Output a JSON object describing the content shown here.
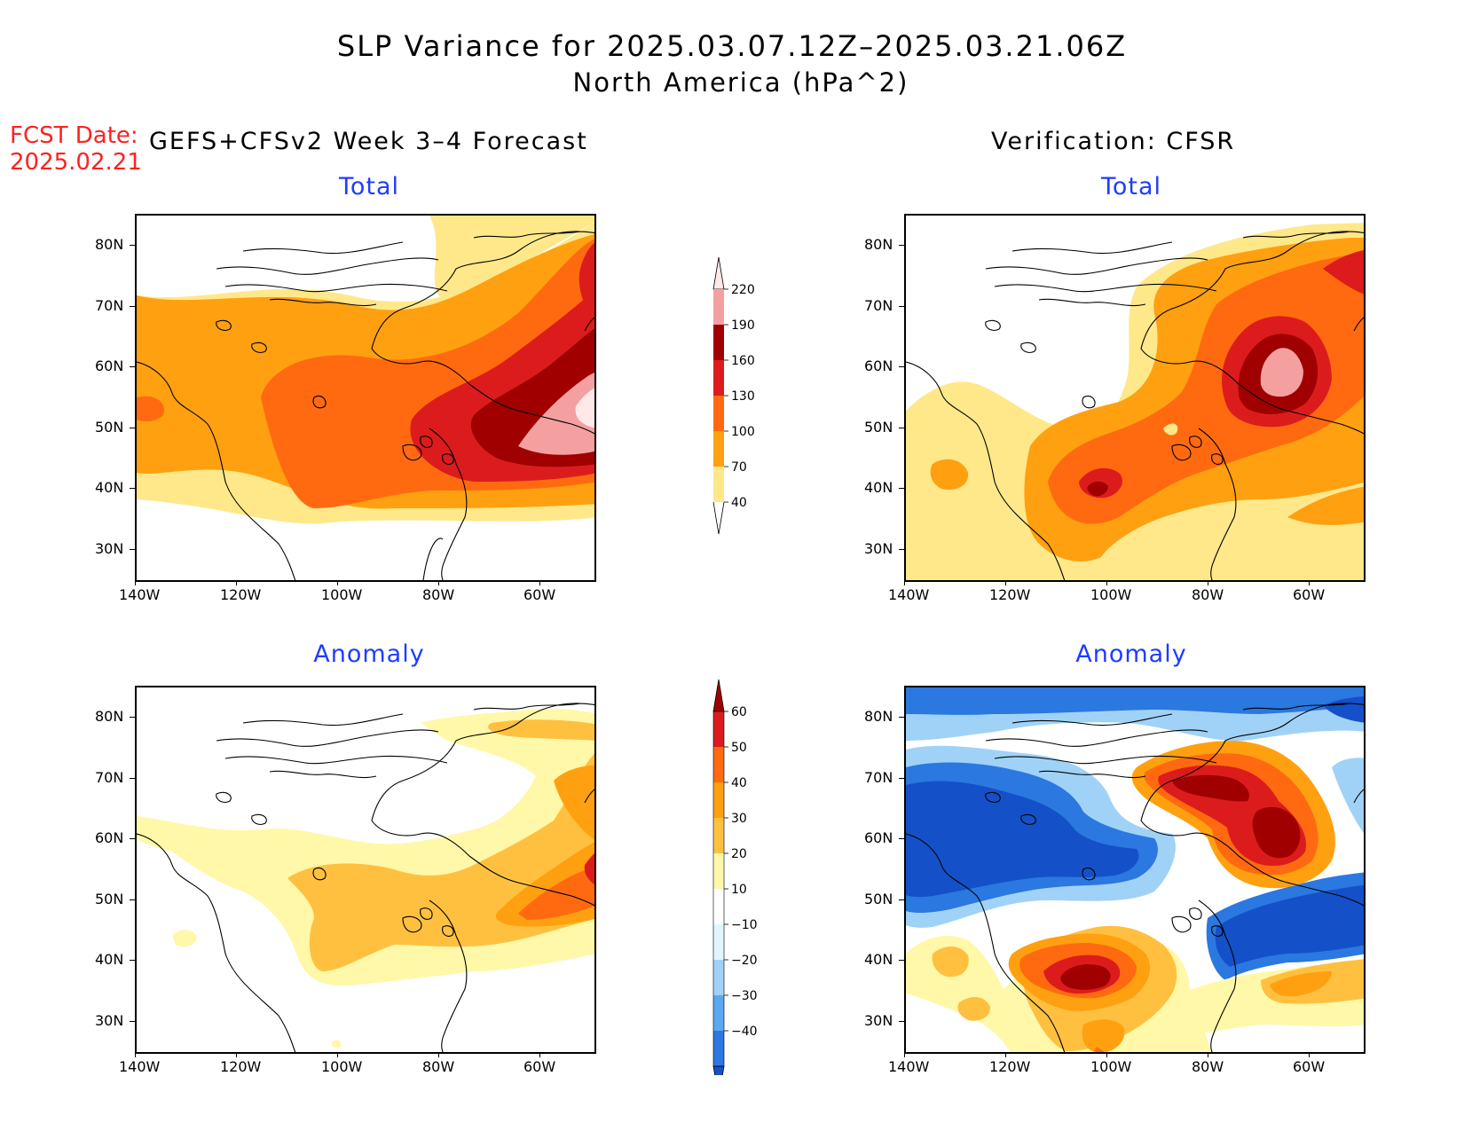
{
  "header": {
    "title": "SLP Variance for 2025.03.07.12Z–2025.03.21.06Z",
    "subtitle": "North America (hPa^2)",
    "fcst_date": "FCST Date:",
    "fcst_date_value": "2025.02.21",
    "left_model": "GEFS+CFSv2 Week 3–4 Forecast",
    "right_model": "Verification: CFSR"
  },
  "panels": {
    "fc_total": "Total",
    "obs_total": "Total",
    "fc_anom": "Anomaly",
    "obs_anom": "Anomaly"
  },
  "axes": {
    "lat_labels": [
      "80N",
      "70N",
      "60N",
      "50N",
      "40N",
      "30N"
    ],
    "lon_labels": [
      "140W",
      "120W",
      "100W",
      "80W",
      "60W"
    ]
  },
  "colorbars": {
    "total": {
      "levels": [
        "220",
        "190",
        "160",
        "130",
        "100",
        "70",
        "40"
      ],
      "colors": [
        "#ffe8e8",
        "#f4a0a0",
        "#a00000",
        "#dc1c1c",
        "#ff6a10",
        "#ffa010",
        "#ffe88a"
      ]
    },
    "anomaly": {
      "levels": [
        "60",
        "50",
        "40",
        "30",
        "20",
        "10",
        "−10",
        "−20",
        "−30",
        "−40"
      ],
      "colors": [
        "#a00000",
        "#dc1c1c",
        "#ff6a10",
        "#ffa010",
        "#ffc040",
        "#fff8a8",
        "#ffffff",
        "#dff6ff",
        "#a0d2f8",
        "#5aa8f0",
        "#2a78e0",
        "#1450c8"
      ]
    }
  }
}
